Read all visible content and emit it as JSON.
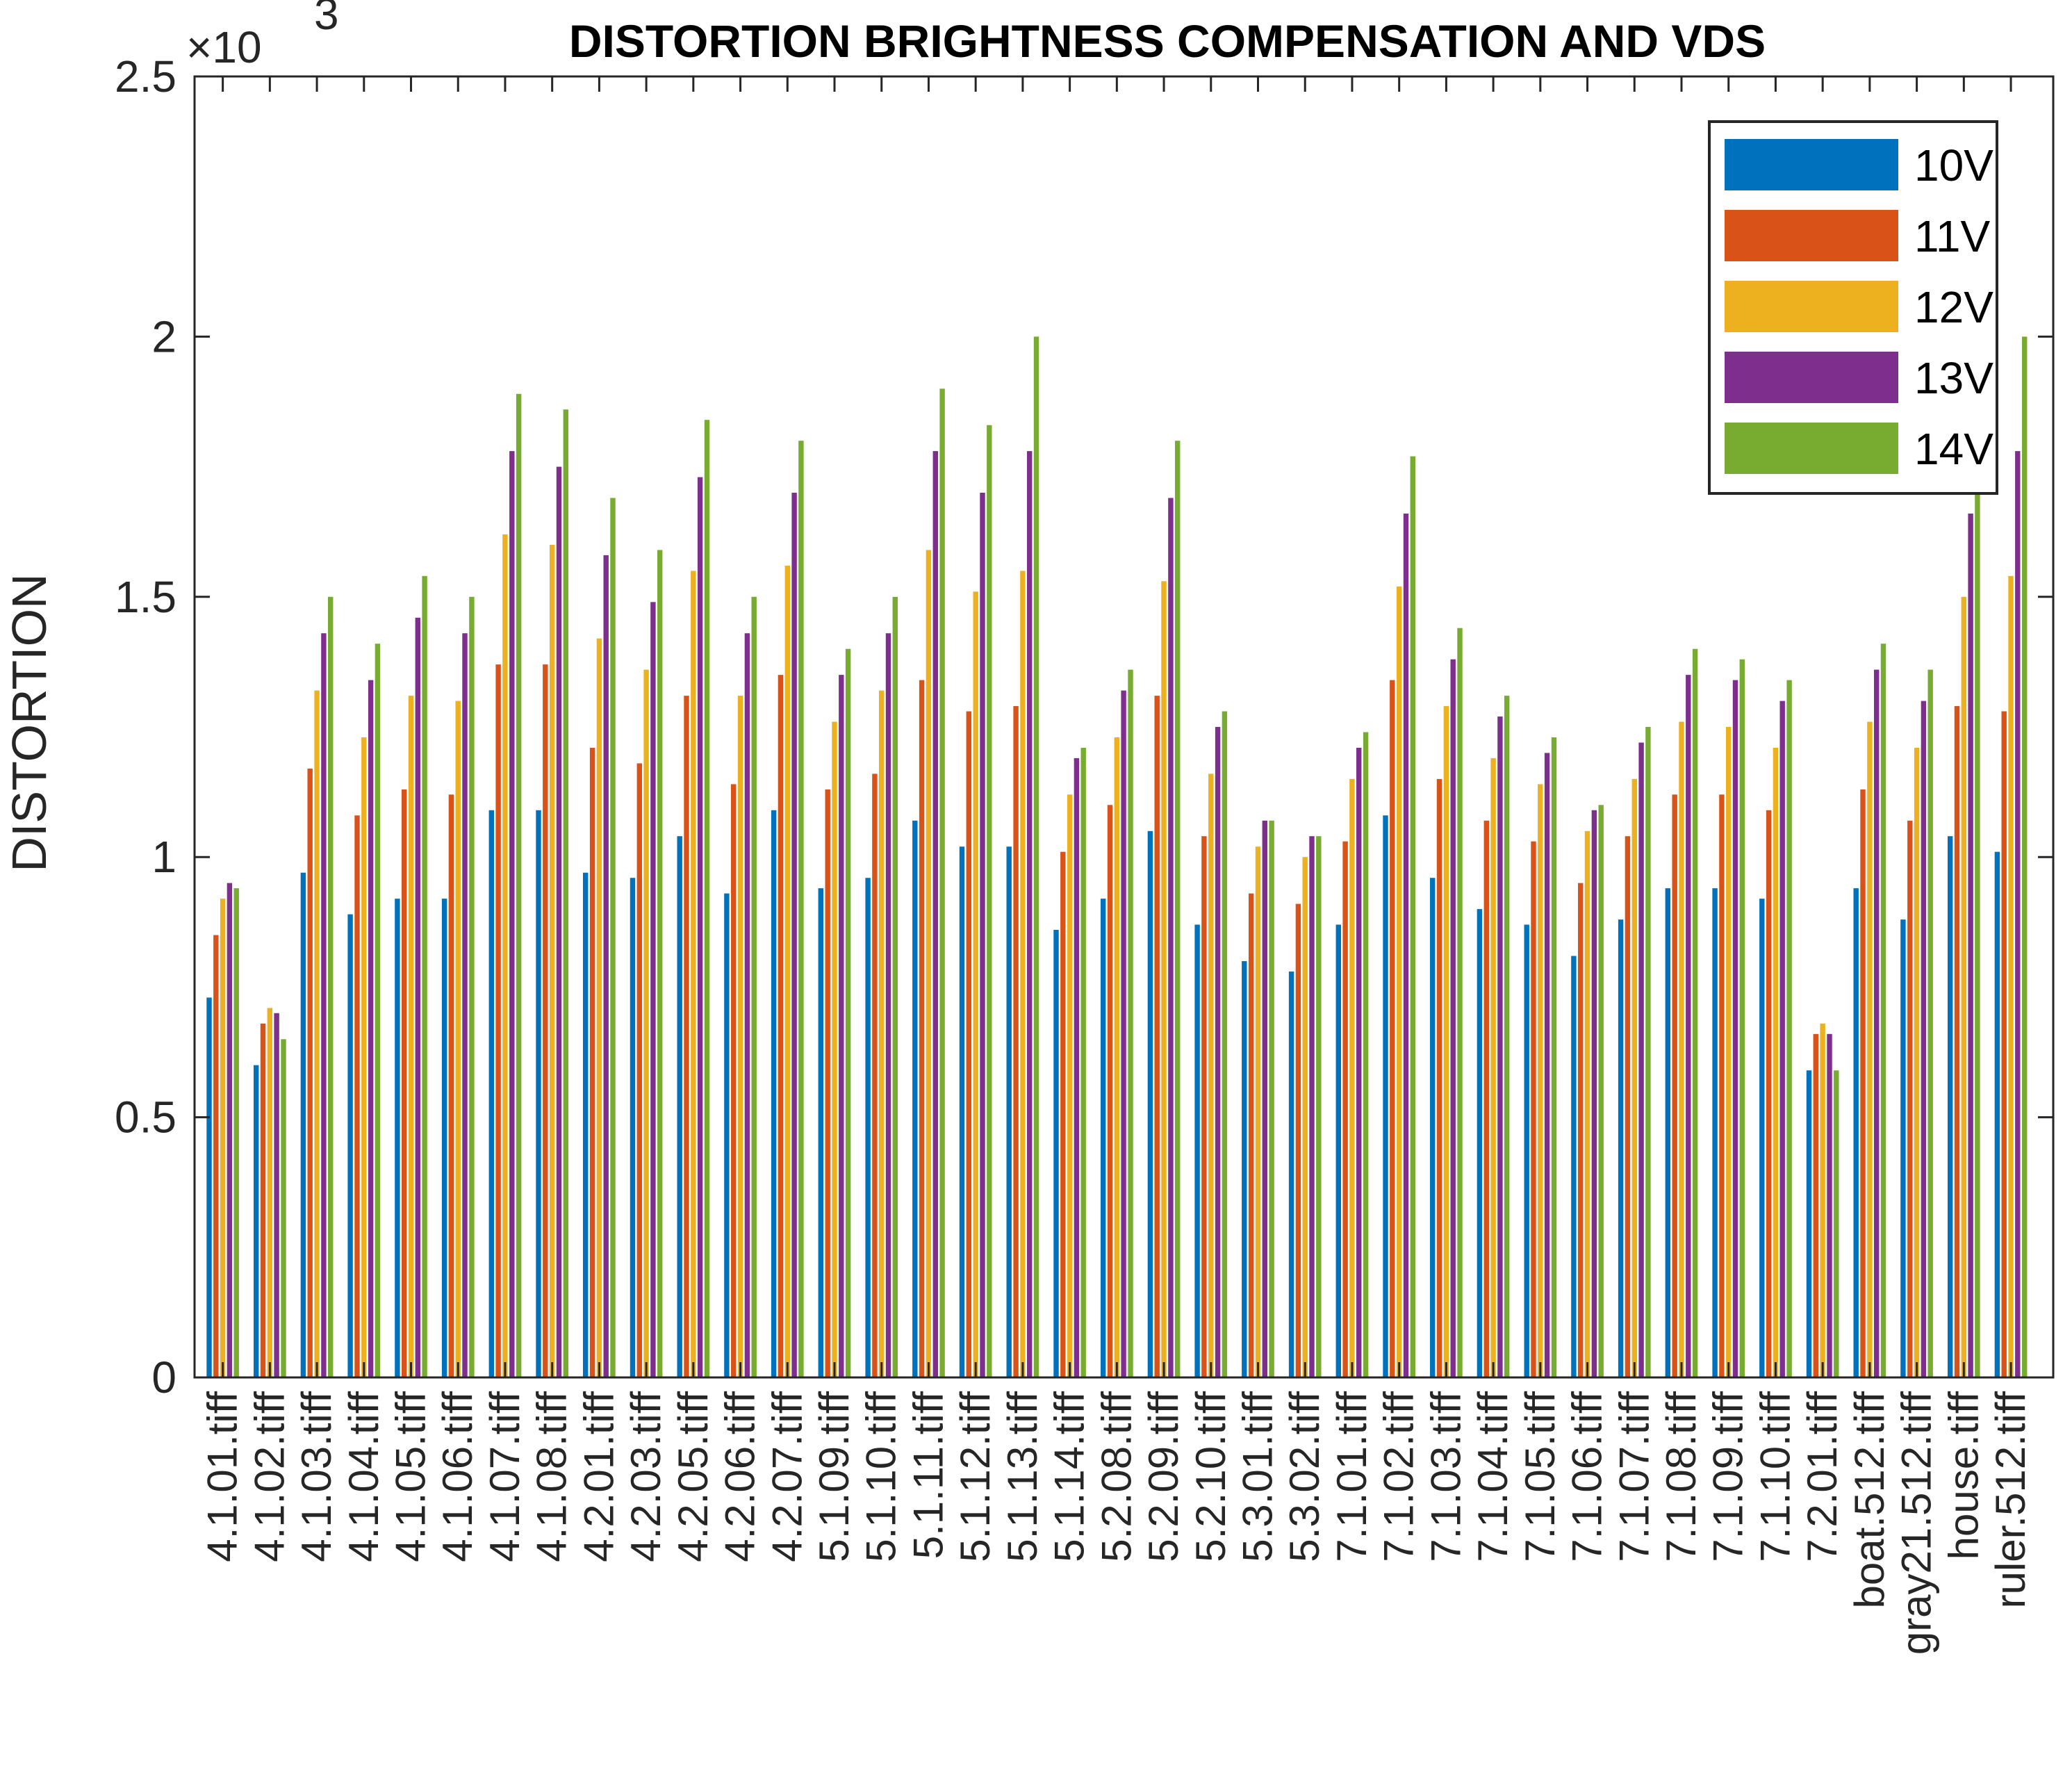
{
  "chart_data": {
    "type": "bar",
    "title": "DISTORTION BRIGHTNESS COMPENSATION AND VDS",
    "xlabel": "",
    "ylabel": "DISTORTION",
    "y_exponent_label": "×10",
    "y_exponent_power": "3",
    "ylim": [
      0,
      2.5
    ],
    "yticks": [
      "0",
      "0.5",
      "1",
      "1.5",
      "2",
      "2.5"
    ],
    "legend_position": "top-right",
    "grid": false,
    "categories": [
      "4.1.01.tiff",
      "4.1.02.tiff",
      "4.1.03.tiff",
      "4.1.04.tiff",
      "4.1.05.tiff",
      "4.1.06.tiff",
      "4.1.07.tiff",
      "4.1.08.tiff",
      "4.2.01.tiff",
      "4.2.03.tiff",
      "4.2.05.tiff",
      "4.2.06.tiff",
      "4.2.07.tiff",
      "5.1.09.tiff",
      "5.1.10.tiff",
      "5.1.11.tiff",
      "5.1.12.tiff",
      "5.1.13.tiff",
      "5.1.14.tiff",
      "5.2.08.tiff",
      "5.2.09.tiff",
      "5.2.10.tiff",
      "5.3.01.tiff",
      "5.3.02.tiff",
      "7.1.01.tiff",
      "7.1.02.tiff",
      "7.1.03.tiff",
      "7.1.04.tiff",
      "7.1.05.tiff",
      "7.1.06.tiff",
      "7.1.07.tiff",
      "7.1.08.tiff",
      "7.1.09.tiff",
      "7.1.10.tiff",
      "7.2.01.tiff",
      "boat.512.tiff",
      "gray21.512.tiff",
      "house.tiff",
      "ruler.512.tiff"
    ],
    "series": [
      {
        "name": "10V",
        "color": "#0072BD",
        "values": [
          0.73,
          0.6,
          0.97,
          0.89,
          0.92,
          0.92,
          1.09,
          1.09,
          0.97,
          0.96,
          1.04,
          0.93,
          1.09,
          0.94,
          0.96,
          1.07,
          1.02,
          1.02,
          0.86,
          0.92,
          1.05,
          0.87,
          0.8,
          0.78,
          0.87,
          1.08,
          0.96,
          0.9,
          0.87,
          0.81,
          0.88,
          0.94,
          0.94,
          0.92,
          0.59,
          0.94,
          0.88,
          1.04,
          1.01
        ]
      },
      {
        "name": "11V",
        "color": "#D95319",
        "values": [
          0.85,
          0.68,
          1.17,
          1.08,
          1.13,
          1.12,
          1.37,
          1.37,
          1.21,
          1.18,
          1.31,
          1.14,
          1.35,
          1.13,
          1.16,
          1.34,
          1.28,
          1.29,
          1.01,
          1.1,
          1.31,
          1.04,
          0.93,
          0.91,
          1.03,
          1.34,
          1.15,
          1.07,
          1.03,
          0.95,
          1.04,
          1.12,
          1.12,
          1.09,
          0.66,
          1.13,
          1.07,
          1.29,
          1.28
        ]
      },
      {
        "name": "12V",
        "color": "#EDB120",
        "values": [
          0.92,
          0.71,
          1.32,
          1.23,
          1.31,
          1.3,
          1.62,
          1.6,
          1.42,
          1.36,
          1.55,
          1.31,
          1.56,
          1.26,
          1.32,
          1.59,
          1.51,
          1.55,
          1.12,
          1.23,
          1.53,
          1.16,
          1.02,
          1.0,
          1.15,
          1.52,
          1.29,
          1.19,
          1.14,
          1.05,
          1.15,
          1.26,
          1.25,
          1.21,
          0.68,
          1.26,
          1.21,
          1.5,
          1.54
        ]
      },
      {
        "name": "13V",
        "color": "#7E2F8E",
        "values": [
          0.95,
          0.7,
          1.43,
          1.34,
          1.46,
          1.43,
          1.78,
          1.75,
          1.58,
          1.49,
          1.73,
          1.43,
          1.7,
          1.35,
          1.43,
          1.78,
          1.7,
          1.78,
          1.19,
          1.32,
          1.69,
          1.25,
          1.07,
          1.04,
          1.21,
          1.66,
          1.38,
          1.27,
          1.2,
          1.09,
          1.22,
          1.35,
          1.34,
          1.3,
          0.66,
          1.36,
          1.3,
          1.66,
          1.78
        ]
      },
      {
        "name": "14V",
        "color": "#77AC30",
        "values": [
          0.94,
          0.65,
          1.5,
          1.41,
          1.54,
          1.5,
          1.89,
          1.86,
          1.69,
          1.59,
          1.84,
          1.5,
          1.8,
          1.4,
          1.5,
          1.9,
          1.83,
          2.0,
          1.21,
          1.36,
          1.8,
          1.28,
          1.07,
          1.04,
          1.24,
          1.77,
          1.44,
          1.31,
          1.23,
          1.1,
          1.25,
          1.4,
          1.38,
          1.34,
          0.59,
          1.41,
          1.36,
          1.72,
          2.0
        ]
      }
    ]
  }
}
